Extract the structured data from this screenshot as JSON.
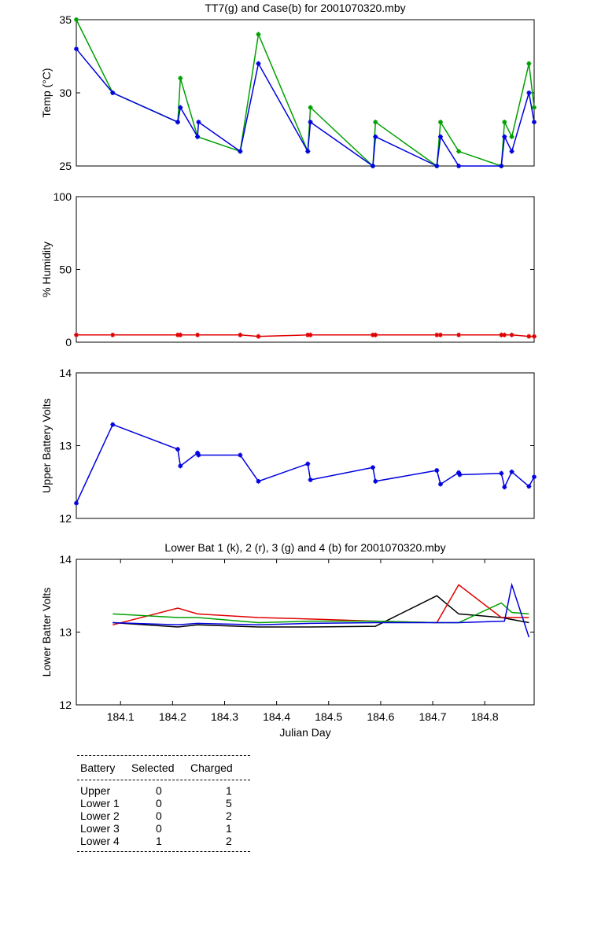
{
  "chart_data": [
    {
      "type": "line",
      "title": "TT7(g) and Case(b) for 2001070320.mby",
      "xlabel": "",
      "ylabel": "Temp  (°C)",
      "xlim": [
        184.015,
        184.895
      ],
      "ylim": [
        25,
        35
      ],
      "yticks": [
        25,
        30,
        35
      ],
      "xticks": [],
      "series": [
        {
          "name": "TT7",
          "color": "#00a000",
          "x": [
            184.015,
            184.085,
            184.21,
            184.215,
            184.248,
            184.33,
            184.365,
            184.46,
            184.465,
            184.585,
            184.59,
            184.708,
            184.715,
            184.75,
            184.832,
            184.838,
            184.852,
            184.885,
            184.895
          ],
          "y": [
            35,
            30,
            28,
            31,
            27,
            26,
            34,
            26,
            29,
            25,
            28,
            25,
            28,
            26,
            25,
            28,
            27,
            32,
            29
          ]
        },
        {
          "name": "Case",
          "color": "#0000e0",
          "x": [
            184.015,
            184.085,
            184.21,
            184.215,
            184.248,
            184.25,
            184.33,
            184.365,
            184.46,
            184.465,
            184.585,
            184.59,
            184.708,
            184.715,
            184.75,
            184.832,
            184.838,
            184.852,
            184.885,
            184.895
          ],
          "y": [
            33,
            30,
            28,
            29,
            27,
            28,
            26,
            32,
            26,
            28,
            25,
            27,
            25,
            27,
            25,
            25,
            27,
            26,
            30,
            28
          ]
        }
      ]
    },
    {
      "type": "line",
      "title": "",
      "xlabel": "",
      "ylabel": "% Humidity",
      "xlim": [
        184.015,
        184.895
      ],
      "ylim": [
        0,
        100
      ],
      "yticks": [
        0,
        50,
        100
      ],
      "xticks": [],
      "series": [
        {
          "name": "Humidity",
          "color": "#e00000",
          "x": [
            184.015,
            184.085,
            184.21,
            184.215,
            184.248,
            184.33,
            184.365,
            184.46,
            184.465,
            184.585,
            184.59,
            184.708,
            184.715,
            184.75,
            184.832,
            184.838,
            184.852,
            184.885,
            184.895
          ],
          "y": [
            5,
            5,
            5,
            5,
            5,
            5,
            4,
            5,
            5,
            5,
            5,
            5,
            5,
            5,
            5,
            5,
            5,
            4,
            4
          ]
        }
      ]
    },
    {
      "type": "line",
      "title": "",
      "xlabel": "",
      "ylabel": "Upper Battery Volts",
      "xlim": [
        184.015,
        184.895
      ],
      "ylim": [
        12,
        14
      ],
      "yticks": [
        12,
        13,
        14
      ],
      "xticks": [],
      "series": [
        {
          "name": "Upper",
          "color": "#0000e0",
          "x": [
            184.015,
            184.085,
            184.21,
            184.215,
            184.248,
            184.25,
            184.33,
            184.365,
            184.46,
            184.465,
            184.585,
            184.59,
            184.708,
            184.715,
            184.75,
            184.752,
            184.832,
            184.838,
            184.852,
            184.885,
            184.895
          ],
          "y": [
            12.21,
            13.29,
            12.95,
            12.72,
            12.9,
            12.87,
            12.87,
            12.51,
            12.75,
            12.53,
            12.7,
            12.51,
            12.66,
            12.47,
            12.63,
            12.6,
            12.62,
            12.43,
            12.64,
            12.44,
            12.57
          ]
        }
      ]
    },
    {
      "type": "line",
      "title": "Lower Bat 1 (k), 2 (r), 3 (g) and 4 (b) for 2001070320.mby",
      "xlabel": "Julian Day",
      "ylabel": "Lower Batter Volts",
      "xlim": [
        184.015,
        184.895
      ],
      "ylim": [
        12,
        14
      ],
      "yticks": [
        12,
        13,
        14
      ],
      "xticks": [
        184.1,
        184.2,
        184.3,
        184.4,
        184.5,
        184.6,
        184.7,
        184.8
      ],
      "xticklabels": [
        "184.1",
        "184.2",
        "184.3",
        "184.4",
        "184.5",
        "184.6",
        "184.7",
        "184.8"
      ],
      "series": [
        {
          "name": "Lower 1",
          "color": "#000000",
          "x": [
            184.085,
            184.21,
            184.248,
            184.365,
            184.465,
            184.59,
            184.708,
            184.75,
            184.832,
            184.885
          ],
          "y": [
            13.13,
            13.07,
            13.1,
            13.07,
            13.07,
            13.08,
            13.5,
            13.25,
            13.2,
            13.13
          ]
        },
        {
          "name": "Lower 2",
          "color": "#e00000",
          "x": [
            184.085,
            184.21,
            184.248,
            184.365,
            184.465,
            184.59,
            184.708,
            184.75,
            184.832,
            184.885
          ],
          "y": [
            13.1,
            13.33,
            13.25,
            13.2,
            13.18,
            13.15,
            13.13,
            13.65,
            13.2,
            13.2
          ]
        },
        {
          "name": "Lower 3",
          "color": "#00a000",
          "x": [
            184.085,
            184.21,
            184.248,
            184.365,
            184.465,
            184.59,
            184.708,
            184.75,
            184.832,
            184.852,
            184.885
          ],
          "y": [
            13.25,
            13.2,
            13.2,
            13.13,
            13.15,
            13.15,
            13.13,
            13.13,
            13.4,
            13.27,
            13.25
          ]
        },
        {
          "name": "Lower 4",
          "color": "#0000e0",
          "x": [
            184.085,
            184.21,
            184.248,
            184.365,
            184.465,
            184.59,
            184.708,
            184.75,
            184.838,
            184.852,
            184.885
          ],
          "y": [
            13.13,
            13.1,
            13.12,
            13.1,
            13.12,
            13.13,
            13.13,
            13.13,
            13.15,
            13.65,
            12.93
          ]
        }
      ]
    }
  ],
  "battery_table": {
    "headers": {
      "battery": "Battery",
      "selected": "Selected",
      "charged": "Charged"
    },
    "rows": [
      {
        "battery": "Upper",
        "selected": "0",
        "charged": "1"
      },
      {
        "battery": "Lower 1",
        "selected": "0",
        "charged": "5"
      },
      {
        "battery": "Lower 2",
        "selected": "0",
        "charged": "2"
      },
      {
        "battery": "Lower 3",
        "selected": "0",
        "charged": "1"
      },
      {
        "battery": "Lower 4",
        "selected": "1",
        "charged": "2"
      }
    ]
  }
}
